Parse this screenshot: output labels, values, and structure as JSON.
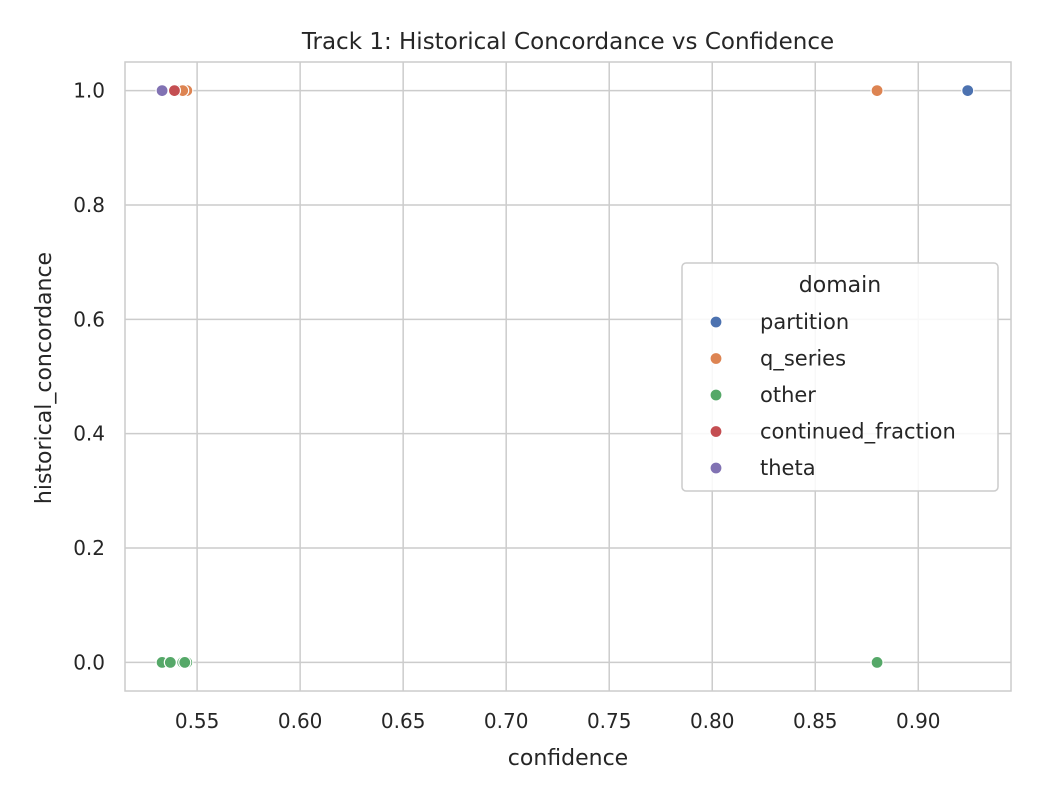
{
  "chart_data": {
    "type": "scatter",
    "title": "Track 1: Historical Concordance vs Confidence",
    "xlabel": "confidence",
    "ylabel": "historical_concordance",
    "xlim": [
      0.515,
      0.945
    ],
    "ylim": [
      -0.05,
      1.05
    ],
    "xticks": [
      0.55,
      0.6,
      0.65,
      0.7,
      0.75,
      0.8,
      0.85,
      0.9
    ],
    "xtick_labels": [
      "0.55",
      "0.60",
      "0.65",
      "0.70",
      "0.75",
      "0.80",
      "0.85",
      "0.90"
    ],
    "yticks": [
      0.0,
      0.2,
      0.4,
      0.6,
      0.8,
      1.0
    ],
    "ytick_labels": [
      "0.0",
      "0.2",
      "0.4",
      "0.6",
      "0.8",
      "1.0"
    ],
    "grid": true,
    "legend": {
      "title": "domain",
      "placement": "center-right"
    },
    "series": [
      {
        "name": "partition",
        "color": "#4c72b0",
        "points": [
          [
            0.924,
            1.0
          ],
          [
            0.541,
            1.0
          ]
        ]
      },
      {
        "name": "q_series",
        "color": "#dd8452",
        "points": [
          [
            0.88,
            1.0
          ],
          [
            0.545,
            1.0
          ],
          [
            0.543,
            1.0
          ]
        ]
      },
      {
        "name": "other",
        "color": "#55a868",
        "points": [
          [
            0.88,
            0.0
          ],
          [
            0.533,
            0.0
          ],
          [
            0.537,
            0.0
          ],
          [
            0.543,
            0.0
          ],
          [
            0.545,
            0.0
          ],
          [
            0.544,
            0.0
          ]
        ]
      },
      {
        "name": "continued_fraction",
        "color": "#c44e52",
        "points": [
          [
            0.539,
            1.0
          ]
        ]
      },
      {
        "name": "theta",
        "color": "#8172b3",
        "points": [
          [
            0.533,
            1.0
          ]
        ]
      }
    ]
  }
}
